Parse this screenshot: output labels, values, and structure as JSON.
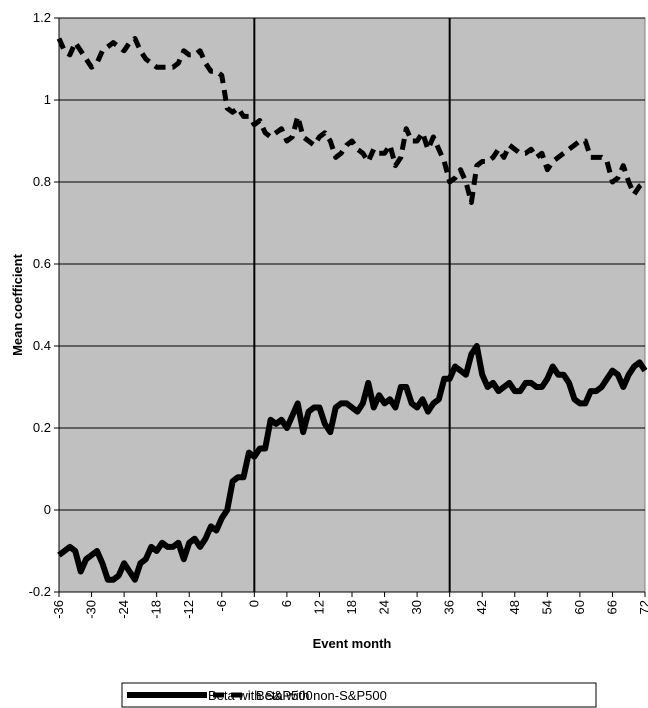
{
  "chart_data": {
    "type": "line",
    "x": [
      -36,
      -35,
      -34,
      -33,
      -32,
      -31,
      -30,
      -29,
      -28,
      -27,
      -26,
      -25,
      -24,
      -23,
      -22,
      -21,
      -20,
      -19,
      -18,
      -17,
      -16,
      -15,
      -14,
      -13,
      -12,
      -11,
      -10,
      -9,
      -8,
      -7,
      -6,
      -5,
      -4,
      -3,
      -2,
      -1,
      0,
      1,
      2,
      3,
      4,
      5,
      6,
      7,
      8,
      9,
      10,
      11,
      12,
      13,
      14,
      15,
      16,
      17,
      18,
      19,
      20,
      21,
      22,
      23,
      24,
      25,
      26,
      27,
      28,
      29,
      30,
      31,
      32,
      33,
      34,
      35,
      36,
      37,
      38,
      39,
      40,
      41,
      42,
      43,
      44,
      45,
      46,
      47,
      48,
      49,
      50,
      51,
      52,
      53,
      54,
      55,
      56,
      57,
      58,
      59,
      60,
      61,
      62,
      63,
      64,
      65,
      66,
      67,
      68,
      69,
      70,
      71,
      72
    ],
    "series": [
      {
        "name": "Beta with S&P500",
        "color": "#000000",
        "dashed": false,
        "values": [
          -0.11,
          -0.1,
          -0.09,
          -0.1,
          -0.15,
          -0.12,
          -0.11,
          -0.1,
          -0.13,
          -0.17,
          -0.17,
          -0.16,
          -0.13,
          -0.15,
          -0.17,
          -0.13,
          -0.12,
          -0.09,
          -0.1,
          -0.08,
          -0.09,
          -0.09,
          -0.08,
          -0.12,
          -0.08,
          -0.07,
          -0.09,
          -0.07,
          -0.04,
          -0.05,
          -0.02,
          0.0,
          0.07,
          0.08,
          0.08,
          0.14,
          0.13,
          0.15,
          0.15,
          0.22,
          0.21,
          0.22,
          0.2,
          0.23,
          0.26,
          0.19,
          0.24,
          0.25,
          0.25,
          0.21,
          0.19,
          0.25,
          0.26,
          0.26,
          0.25,
          0.24,
          0.26,
          0.31,
          0.25,
          0.28,
          0.26,
          0.27,
          0.25,
          0.3,
          0.3,
          0.26,
          0.25,
          0.27,
          0.24,
          0.26,
          0.27,
          0.32,
          0.32,
          0.35,
          0.34,
          0.33,
          0.38,
          0.4,
          0.33,
          0.3,
          0.31,
          0.29,
          0.3,
          0.31,
          0.29,
          0.29,
          0.31,
          0.31,
          0.3,
          0.3,
          0.32,
          0.35,
          0.33,
          0.33,
          0.31,
          0.27,
          0.26,
          0.26,
          0.29,
          0.29,
          0.3,
          0.32,
          0.34,
          0.33,
          0.3,
          0.33,
          0.35,
          0.36,
          0.34
        ]
      },
      {
        "name": "Beta with non-S&P500",
        "color": "#000000",
        "dashed": true,
        "values": [
          1.15,
          1.12,
          1.11,
          1.14,
          1.12,
          1.1,
          1.08,
          1.09,
          1.12,
          1.13,
          1.14,
          1.13,
          1.12,
          1.14,
          1.15,
          1.12,
          1.1,
          1.09,
          1.08,
          1.08,
          1.08,
          1.08,
          1.09,
          1.12,
          1.11,
          1.11,
          1.12,
          1.09,
          1.07,
          1.07,
          1.06,
          0.98,
          0.97,
          0.98,
          0.96,
          0.96,
          0.94,
          0.95,
          0.92,
          0.91,
          0.92,
          0.93,
          0.9,
          0.91,
          0.96,
          0.91,
          0.9,
          0.89,
          0.91,
          0.92,
          0.9,
          0.86,
          0.87,
          0.89,
          0.9,
          0.88,
          0.87,
          0.85,
          0.88,
          0.87,
          0.87,
          0.89,
          0.84,
          0.86,
          0.93,
          0.9,
          0.9,
          0.92,
          0.88,
          0.91,
          0.88,
          0.85,
          0.8,
          0.81,
          0.83,
          0.8,
          0.75,
          0.84,
          0.85,
          0.85,
          0.86,
          0.88,
          0.86,
          0.89,
          0.88,
          0.87,
          0.87,
          0.88,
          0.86,
          0.87,
          0.83,
          0.85,
          0.86,
          0.87,
          0.88,
          0.89,
          0.9,
          0.9,
          0.86,
          0.86,
          0.86,
          0.85,
          0.8,
          0.81,
          0.84,
          0.8,
          0.77,
          0.79,
          0.8
        ]
      }
    ],
    "xlim": [
      -36,
      72
    ],
    "xticks": [
      -36,
      -30,
      -24,
      -18,
      -12,
      -6,
      0,
      6,
      12,
      18,
      24,
      30,
      36,
      42,
      48,
      54,
      60,
      66,
      72
    ],
    "ylim": [
      -0.2,
      1.2
    ],
    "yticks": [
      -0.2,
      0,
      0.2,
      0.4,
      0.6,
      0.8,
      1,
      1.2
    ],
    "vlines": [
      0,
      36
    ],
    "xlabel": "Event month",
    "ylabel": "Mean coefficient",
    "grid": true,
    "legend": "bottom"
  }
}
